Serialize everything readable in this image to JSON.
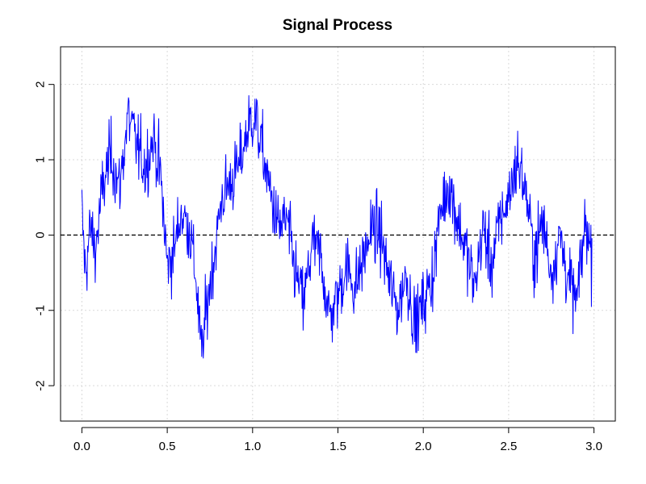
{
  "chart_data": {
    "type": "line",
    "title": "Signal Process",
    "xlabel": "",
    "ylabel": "",
    "xlim": [
      -0.125,
      3.125
    ],
    "ylim": [
      -2.47,
      2.5
    ],
    "x_ticks": [
      0.0,
      0.5,
      1.0,
      1.5,
      2.0,
      2.5,
      3.0
    ],
    "x_tick_labels": [
      "0.0",
      "0.5",
      "1.0",
      "1.5",
      "2.0",
      "2.5",
      "3.0"
    ],
    "y_ticks": [
      -2,
      -1,
      0,
      1,
      2
    ],
    "y_tick_labels": [
      "-2",
      "-1",
      "0",
      "1",
      "2"
    ],
    "grid": true,
    "reference_line": {
      "y": 0,
      "style": "dashed",
      "color": "#000000"
    },
    "series": [
      {
        "color": "#0000ff",
        "sample_step": 0.003,
        "x_range": [
          0.0,
          2.99
        ],
        "anchors": [
          [
            0.0,
            0.3
          ],
          [
            0.02,
            -0.5
          ],
          [
            0.05,
            0.1
          ],
          [
            0.08,
            -0.2
          ],
          [
            0.12,
            0.6
          ],
          [
            0.17,
            1.1
          ],
          [
            0.22,
            0.6
          ],
          [
            0.27,
            1.6
          ],
          [
            0.32,
            1.2
          ],
          [
            0.37,
            0.9
          ],
          [
            0.42,
            1.3
          ],
          [
            0.46,
            0.8
          ],
          [
            0.5,
            -0.4
          ],
          [
            0.54,
            -0.2
          ],
          [
            0.58,
            0.3
          ],
          [
            0.63,
            0.1
          ],
          [
            0.67,
            -0.6
          ],
          [
            0.7,
            -1.6
          ],
          [
            0.74,
            -0.8
          ],
          [
            0.78,
            -0.2
          ],
          [
            0.82,
            0.5
          ],
          [
            0.87,
            0.7
          ],
          [
            0.92,
            0.9
          ],
          [
            0.97,
            1.4
          ],
          [
            1.01,
            1.6
          ],
          [
            1.05,
            1.2
          ],
          [
            1.1,
            0.6
          ],
          [
            1.15,
            0.1
          ],
          [
            1.2,
            0.2
          ],
          [
            1.25,
            -0.5
          ],
          [
            1.3,
            -0.9
          ],
          [
            1.35,
            -0.1
          ],
          [
            1.4,
            -0.3
          ],
          [
            1.45,
            -1.1
          ],
          [
            1.5,
            -0.8
          ],
          [
            1.55,
            -0.4
          ],
          [
            1.6,
            -0.7
          ],
          [
            1.65,
            -0.3
          ],
          [
            1.7,
            0.1
          ],
          [
            1.75,
            0.0
          ],
          [
            1.8,
            -0.6
          ],
          [
            1.85,
            -1.0
          ],
          [
            1.9,
            -0.5
          ],
          [
            1.95,
            -1.2
          ],
          [
            2.0,
            -0.9
          ],
          [
            2.05,
            -0.6
          ],
          [
            2.1,
            0.3
          ],
          [
            2.15,
            0.7
          ],
          [
            2.2,
            0.2
          ],
          [
            2.25,
            -0.2
          ],
          [
            2.3,
            -0.7
          ],
          [
            2.35,
            0.1
          ],
          [
            2.4,
            -0.4
          ],
          [
            2.45,
            0.2
          ],
          [
            2.5,
            0.5
          ],
          [
            2.55,
            1.0
          ],
          [
            2.6,
            0.6
          ],
          [
            2.65,
            -0.3
          ],
          [
            2.7,
            0.2
          ],
          [
            2.75,
            -0.5
          ],
          [
            2.8,
            0.0
          ],
          [
            2.85,
            -0.6
          ],
          [
            2.9,
            -0.9
          ],
          [
            2.95,
            0.2
          ],
          [
            2.99,
            -0.3
          ]
        ]
      }
    ]
  }
}
